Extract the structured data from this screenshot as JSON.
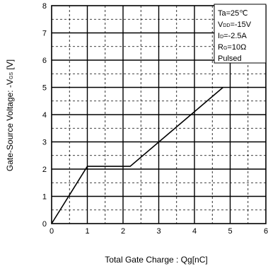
{
  "chart_data": {
    "type": "line",
    "xlabel_main": "Total Gate Charge : Qg",
    "xlabel_unit": "[nC]",
    "ylabel_main": "Gate-Source Voltage: -V",
    "ylabel_sub": "GS",
    "ylabel_unit": " [V]",
    "xlim": [
      0,
      6
    ],
    "ylim": [
      0,
      8
    ],
    "x_ticks": [
      "0",
      "1",
      "2",
      "3",
      "4",
      "5",
      "6"
    ],
    "y_ticks": [
      "0",
      "1",
      "2",
      "3",
      "4",
      "5",
      "6",
      "7",
      "8"
    ],
    "grid": true,
    "series": [
      {
        "x": [
          0,
          1.0,
          2.2,
          4.8
        ],
        "y": [
          0,
          2.1,
          2.1,
          5.0
        ]
      }
    ],
    "conditions": [
      {
        "main": "Ta=25℃",
        "sub": "",
        "rest": ""
      },
      {
        "main": "V",
        "sub": "DD",
        "rest": "=-15V"
      },
      {
        "main": "I",
        "sub": "D",
        "rest": "=-2.5A"
      },
      {
        "main": "R",
        "sub": "G",
        "rest": "=10Ω"
      },
      {
        "main": "Pulsed",
        "sub": "",
        "rest": ""
      }
    ]
  }
}
